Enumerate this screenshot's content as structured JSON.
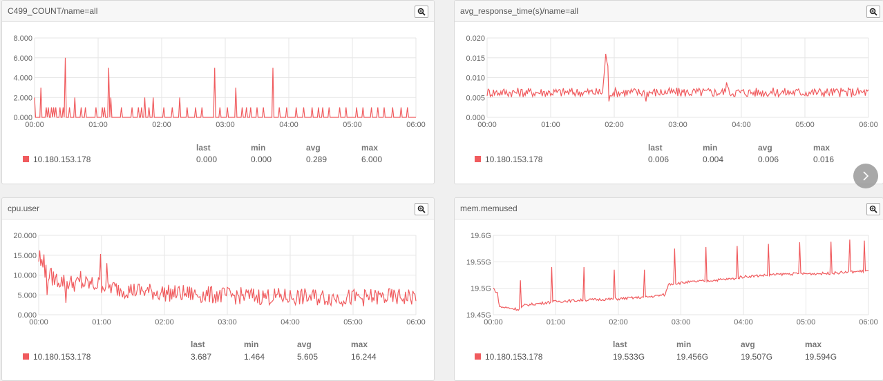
{
  "line_color": "#f05b5e",
  "panels": [
    {
      "title": "C499_COUNT/name=all",
      "zoom_icon": "zoom-in-icon",
      "y_ticks": [
        "8.000",
        "6.000",
        "4.000",
        "2.000",
        "0.000"
      ],
      "x_ticks": [
        "00:00",
        "01:00",
        "02:00",
        "03:00",
        "04:00",
        "05:00",
        "06:00"
      ],
      "legend": {
        "host": "10.180.153.178",
        "labels": [
          "last",
          "min",
          "avg",
          "max"
        ],
        "values": [
          "0.000",
          "0.000",
          "0.289",
          "6.000"
        ]
      },
      "chart_data": {
        "type": "line",
        "title": "C499_COUNT/name=all",
        "ylim": [
          0,
          8
        ],
        "x_range_minutes": [
          0,
          360
        ],
        "series": [
          {
            "name": "10.180.153.178",
            "spikes": [
              [
                0,
                2
              ],
              [
                6,
                3
              ],
              [
                11,
                1
              ],
              [
                13,
                1
              ],
              [
                16,
                1
              ],
              [
                18,
                1
              ],
              [
                20,
                1
              ],
              [
                24,
                1
              ],
              [
                27,
                1
              ],
              [
                29,
                6
              ],
              [
                33,
                1
              ],
              [
                38,
                2
              ],
              [
                44,
                1
              ],
              [
                48,
                1
              ],
              [
                58,
                1
              ],
              [
                64,
                1
              ],
              [
                66,
                1
              ],
              [
                70,
                5
              ],
              [
                72,
                2
              ],
              [
                82,
                1
              ],
              [
                92,
                1
              ],
              [
                98,
                1
              ],
              [
                101,
                1
              ],
              [
                104,
                2
              ],
              [
                108,
                1
              ],
              [
                112,
                2
              ],
              [
                122,
                1
              ],
              [
                130,
                1
              ],
              [
                137,
                2
              ],
              [
                144,
                1
              ],
              [
                152,
                1
              ],
              [
                158,
                1
              ],
              [
                170,
                5
              ],
              [
                175,
                1
              ],
              [
                182,
                1
              ],
              [
                190,
                3
              ],
              [
                196,
                1
              ],
              [
                200,
                1
              ],
              [
                204,
                1
              ],
              [
                210,
                1
              ],
              [
                216,
                1
              ],
              [
                225,
                5
              ],
              [
                231,
                1
              ],
              [
                238,
                1
              ],
              [
                247,
                1
              ],
              [
                254,
                1
              ],
              [
                262,
                1
              ],
              [
                268,
                1
              ],
              [
                272,
                1
              ],
              [
                278,
                1
              ],
              [
                288,
                1
              ],
              [
                294,
                1
              ],
              [
                304,
                1
              ],
              [
                310,
                1
              ],
              [
                318,
                1
              ],
              [
                324,
                1
              ],
              [
                330,
                1
              ],
              [
                338,
                1
              ],
              [
                346,
                1
              ],
              [
                352,
                1
              ]
            ]
          }
        ]
      }
    },
    {
      "title": "avg_response_time(s)/name=all",
      "zoom_icon": "zoom-in-icon",
      "y_ticks": [
        "0.020",
        "0.015",
        "0.010",
        "0.005",
        "0.000"
      ],
      "x_ticks": [
        "00:00",
        "01:00",
        "02:00",
        "03:00",
        "04:00",
        "05:00",
        "06:00"
      ],
      "legend": {
        "host": "10.180.153.178",
        "labels": [
          "last",
          "min",
          "avg",
          "max"
        ],
        "values": [
          "0.006",
          "0.004",
          "0.006",
          "0.016"
        ]
      },
      "chart_data": {
        "type": "line",
        "title": "avg_response_time(s)/name=all",
        "ylim": [
          0,
          0.02
        ],
        "x_range_minutes": [
          0,
          360
        ],
        "series": [
          {
            "name": "10.180.153.178",
            "base": 0.0063,
            "noise": 0.0012,
            "spikes": [
              [
                110,
                0.0095
              ],
              [
                111,
                0.0125
              ],
              [
                112,
                0.016
              ],
              [
                113,
                0.014
              ],
              [
                114,
                0.013
              ],
              [
                115,
                0.004
              ],
              [
                150,
                0.004
              ],
              [
                226,
                0.0088
              ],
              [
                227,
                0.0078
              ]
            ]
          }
        ]
      }
    },
    {
      "title": "cpu.user",
      "zoom_icon": "zoom-in-icon",
      "y_ticks": [
        "20.000",
        "15.000",
        "10.000",
        "5.000",
        "0.000"
      ],
      "x_ticks": [
        "00:00",
        "01:00",
        "02:00",
        "03:00",
        "04:00",
        "05:00",
        "06:00"
      ],
      "legend": {
        "host": "10.180.153.178",
        "labels": [
          "last",
          "min",
          "avg",
          "max"
        ],
        "values": [
          "3.687",
          "1.464",
          "5.605",
          "16.244"
        ]
      },
      "chart_data": {
        "type": "line",
        "title": "cpu.user",
        "ylim": [
          0,
          20
        ],
        "x_range_minutes": [
          0,
          360
        ],
        "series": [
          {
            "name": "10.180.153.178",
            "base_points": [
              [
                0,
                14
              ],
              [
                5,
                11
              ],
              [
                15,
                9
              ],
              [
                30,
                8
              ],
              [
                60,
                7.5
              ],
              [
                75,
                6.5
              ],
              [
                120,
                5.5
              ],
              [
                180,
                4.8
              ],
              [
                240,
                4.5
              ],
              [
                300,
                4.3
              ],
              [
                360,
                4.5
              ]
            ],
            "noise": 2.2,
            "spikes": [
              [
                1,
                16.2
              ],
              [
                3,
                14
              ],
              [
                5,
                15.2
              ],
              [
                8,
                5
              ],
              [
                26,
                3
              ],
              [
                59,
                15.3
              ],
              [
                65,
                13
              ],
              [
                40,
                11
              ]
            ]
          }
        ]
      }
    },
    {
      "title": "mem.memused",
      "zoom_icon": "zoom-in-icon",
      "y_ticks": [
        "19.6G",
        "19.55G",
        "19.5G",
        "19.45G"
      ],
      "x_ticks": [
        "00:00",
        "01:00",
        "02:00",
        "03:00",
        "04:00",
        "05:00",
        "06:00"
      ],
      "legend": {
        "host": "10.180.153.178",
        "labels": [
          "last",
          "min",
          "avg",
          "max"
        ],
        "values": [
          "19.533G",
          "19.456G",
          "19.507G",
          "19.594G"
        ]
      },
      "chart_data": {
        "type": "line",
        "title": "mem.memused",
        "ylim": [
          19.45,
          19.6
        ],
        "x_range_minutes": [
          0,
          360
        ],
        "series": [
          {
            "name": "10.180.153.178",
            "base_points": [
              [
                0,
                19.5
              ],
              [
                4,
                19.49
              ],
              [
                6,
                19.465
              ],
              [
                25,
                19.46
              ],
              [
                30,
                19.468
              ],
              [
                60,
                19.475
              ],
              [
                90,
                19.478
              ],
              [
                120,
                19.48
              ],
              [
                150,
                19.484
              ],
              [
                165,
                19.488
              ],
              [
                168,
                19.508
              ],
              [
                190,
                19.512
              ],
              [
                230,
                19.518
              ],
              [
                240,
                19.522
              ],
              [
                280,
                19.527
              ],
              [
                320,
                19.528
              ],
              [
                360,
                19.533
              ]
            ],
            "noise": 0.0025,
            "spikes": [
              [
                26,
                19.515
              ],
              [
                56,
                19.54
              ],
              [
                87,
                19.54
              ],
              [
                116,
                19.535
              ],
              [
                145,
                19.535
              ],
              [
                174,
                19.575
              ],
              [
                204,
                19.578
              ],
              [
                234,
                19.58
              ],
              [
                264,
                19.584
              ],
              [
                294,
                19.587
              ],
              [
                324,
                19.588
              ],
              [
                342,
                19.592
              ],
              [
                356,
                19.59
              ]
            ]
          }
        ]
      }
    }
  ],
  "next_button": {
    "icon": "chevron-right-icon"
  }
}
